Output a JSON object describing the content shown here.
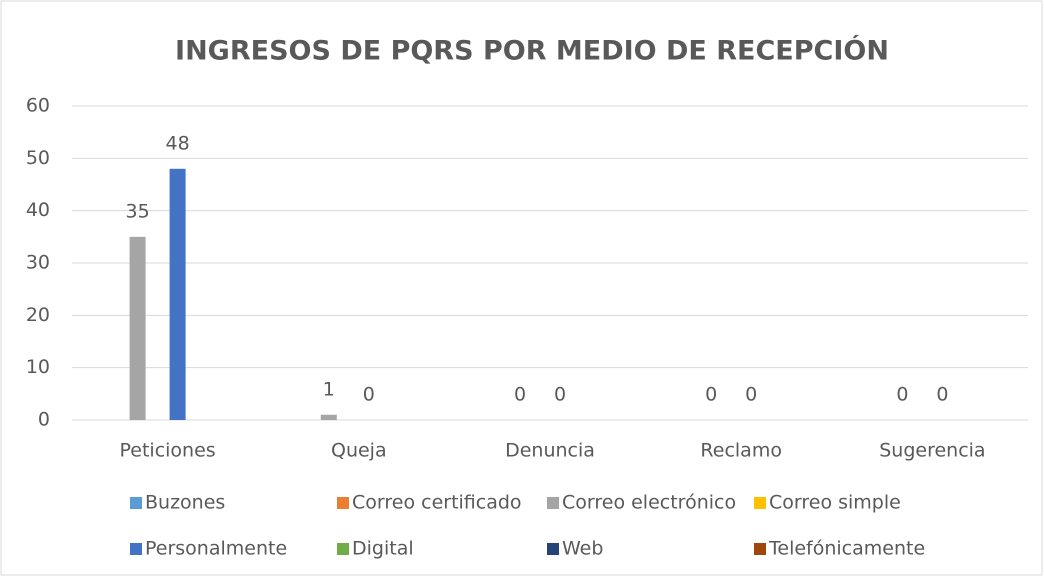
{
  "chart_data": {
    "type": "bar",
    "title": "INGRESOS DE PQRS POR MEDIO DE RECEPCIÓN",
    "categories": [
      "Peticiones",
      "Queja",
      "Denuncia",
      "Reclamo",
      "Sugerencia"
    ],
    "series": [
      {
        "name": "Buzones",
        "color": "#5b9bd5",
        "values": [
          null,
          null,
          null,
          null,
          null
        ]
      },
      {
        "name": "Correo certificado",
        "color": "#ed7d31",
        "values": [
          null,
          null,
          null,
          null,
          null
        ]
      },
      {
        "name": "Correo electrónico",
        "color": "#a5a5a5",
        "values": [
          35,
          1,
          0,
          0,
          0
        ],
        "show_labels": true
      },
      {
        "name": "Correo simple",
        "color": "#ffc000",
        "values": [
          null,
          null,
          null,
          null,
          null
        ]
      },
      {
        "name": "Personalmente",
        "color": "#4472c4",
        "values": [
          48,
          0,
          0,
          0,
          0
        ],
        "show_labels": true
      },
      {
        "name": "Digital",
        "color": "#70ad47",
        "values": [
          null,
          null,
          null,
          null,
          null
        ]
      },
      {
        "name": "Web",
        "color": "#264478",
        "values": [
          null,
          null,
          null,
          null,
          null
        ]
      },
      {
        "name": "Telefónicamente",
        "color": "#9e480e",
        "values": [
          null,
          null,
          null,
          null,
          null
        ]
      }
    ],
    "ylim": [
      0,
      60
    ],
    "yticks": [
      0,
      10,
      20,
      30,
      40,
      50,
      60
    ],
    "grid": true,
    "legend": "bottom"
  }
}
